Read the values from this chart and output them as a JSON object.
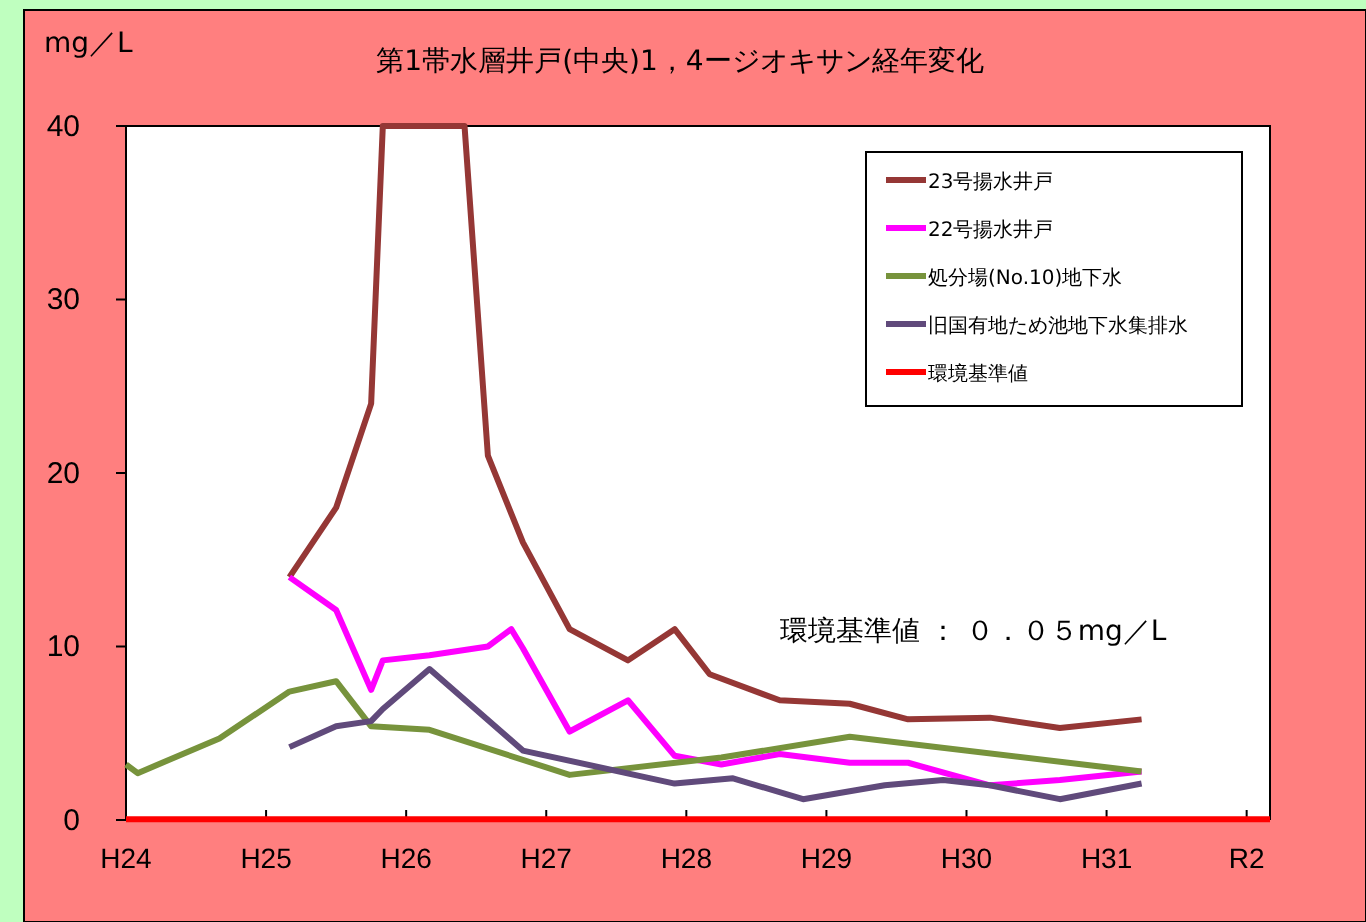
{
  "chart_data": {
    "type": "line",
    "title": "第1帯水層井戸(中央)1，4ージオキサン経年変化",
    "ylabel": "mg／L",
    "categories": [
      "H24",
      null,
      null,
      null,
      null,
      null,
      null,
      null,
      null,
      null,
      null,
      null,
      "H25",
      null,
      null,
      null,
      null,
      null,
      null,
      null,
      null,
      null,
      null,
      null,
      "H26",
      null,
      null,
      null,
      null,
      null,
      null,
      null,
      null,
      null,
      null,
      null,
      "H27",
      null,
      null,
      null,
      null,
      null,
      null,
      null,
      null,
      null,
      null,
      null,
      "H28",
      null,
      null,
      null,
      null,
      null,
      null,
      null,
      null,
      null,
      null,
      null,
      "H29",
      null,
      null,
      null,
      null,
      null,
      null,
      null,
      null,
      null,
      null,
      null,
      "H30",
      null,
      null,
      null,
      null,
      null,
      null,
      null,
      null,
      null,
      null,
      null,
      "H31",
      null,
      null,
      null,
      null,
      null,
      null,
      null,
      null,
      null,
      null,
      null,
      "R2",
      null,
      null
    ],
    "ylim": [
      0,
      40
    ],
    "yticks": [
      0,
      10,
      20,
      30,
      40
    ],
    "grid": false,
    "legend": "top right",
    "marker": "none",
    "line_style": "solid",
    "series": [
      {
        "name": "23号揚水井戸",
        "color": "#953735",
        "values": [
          null,
          null,
          null,
          null,
          null,
          null,
          null,
          null,
          null,
          null,
          null,
          null,
          null,
          null,
          14,
          null,
          null,
          null,
          18,
          null,
          null,
          24,
          40,
          null,
          null,
          null,
          null,
          null,
          null,
          40,
          null,
          21,
          null,
          null,
          16,
          null,
          null,
          null,
          11,
          null,
          null,
          null,
          null,
          9.2,
          null,
          null,
          null,
          11,
          null,
          null,
          8.4,
          null,
          null,
          null,
          null,
          null,
          6.9,
          null,
          null,
          null,
          null,
          null,
          6.7,
          null,
          null,
          null,
          null,
          5.8,
          null,
          null,
          null,
          null,
          null,
          null,
          5.9,
          null,
          null,
          null,
          null,
          null,
          5.3,
          null,
          null,
          null,
          null,
          null,
          null,
          5.8,
          null,
          null,
          null,
          null,
          null,
          null,
          null,
          null,
          null,
          null,
          null
        ]
      },
      {
        "name": "22号揚水井戸",
        "color": "#ff00ff",
        "values": [
          null,
          null,
          null,
          null,
          null,
          null,
          null,
          null,
          null,
          null,
          null,
          null,
          null,
          null,
          14,
          null,
          null,
          null,
          12.1,
          null,
          null,
          7.5,
          9.2,
          null,
          null,
          null,
          9.5,
          null,
          null,
          null,
          null,
          10,
          null,
          11,
          9.9,
          null,
          null,
          null,
          5.1,
          null,
          null,
          null,
          null,
          6.9,
          null,
          null,
          null,
          3.7,
          null,
          null,
          null,
          3.2,
          null,
          null,
          null,
          null,
          3.8,
          null,
          null,
          null,
          null,
          null,
          3.3,
          null,
          null,
          null,
          null,
          3.3,
          null,
          null,
          null,
          null,
          null,
          null,
          2,
          null,
          null,
          null,
          null,
          null,
          2.3,
          null,
          null,
          null,
          null,
          null,
          null,
          2.8,
          null,
          null,
          null,
          null,
          null,
          null,
          null,
          null,
          null,
          null,
          null
        ]
      },
      {
        "name": "処分場(No.10)地下水",
        "color": "#77933c",
        "values": [
          3.2,
          2.7,
          null,
          null,
          null,
          null,
          null,
          null,
          4.7,
          null,
          null,
          null,
          null,
          null,
          7.4,
          null,
          null,
          null,
          8,
          null,
          null,
          5.4,
          null,
          null,
          null,
          null,
          5.2,
          null,
          null,
          null,
          null,
          null,
          null,
          null,
          null,
          null,
          null,
          null,
          2.6,
          null,
          null,
          null,
          null,
          null,
          null,
          null,
          null,
          null,
          null,
          null,
          null,
          3.6,
          null,
          null,
          null,
          null,
          null,
          null,
          null,
          null,
          null,
          null,
          4.8,
          null,
          null,
          null,
          null,
          null,
          null,
          null,
          null,
          null,
          null,
          null,
          null,
          null,
          null,
          null,
          null,
          null,
          null,
          null,
          null,
          null,
          null,
          null,
          null,
          2.8,
          null,
          null,
          null,
          null,
          null,
          null,
          null,
          null,
          null,
          null,
          null
        ]
      },
      {
        "name": "旧国有地ため池地下水集排水",
        "color": "#604a7b",
        "values": [
          null,
          null,
          null,
          null,
          null,
          null,
          null,
          null,
          null,
          null,
          null,
          null,
          null,
          null,
          4.2,
          null,
          null,
          null,
          5.4,
          null,
          null,
          5.7,
          6.4,
          null,
          null,
          null,
          8.7,
          null,
          null,
          null,
          null,
          null,
          null,
          null,
          4,
          null,
          null,
          null,
          null,
          null,
          null,
          null,
          null,
          null,
          null,
          null,
          null,
          2.1,
          null,
          null,
          null,
          null,
          2.4,
          null,
          null,
          null,
          null,
          null,
          1.2,
          null,
          null,
          null,
          null,
          null,
          null,
          2,
          null,
          null,
          null,
          null,
          2.3,
          null,
          null,
          null,
          2,
          null,
          null,
          null,
          null,
          null,
          1.2,
          null,
          null,
          null,
          null,
          null,
          null,
          2.1,
          null,
          null,
          null,
          null,
          null,
          null,
          null,
          null,
          null,
          null,
          null
        ]
      },
      {
        "name": "環境基準値",
        "color": "#ff0000",
        "values": [
          0.05,
          0.05,
          0.05,
          0.05,
          0.05,
          0.05,
          0.05,
          0.05,
          0.05,
          0.05,
          0.05,
          0.05,
          0.05,
          0.05,
          0.05,
          0.05,
          0.05,
          0.05,
          0.05,
          0.05,
          0.05,
          0.05,
          0.05,
          0.05,
          0.05,
          0.05,
          0.05,
          0.05,
          0.05,
          0.05,
          0.05,
          0.05,
          0.05,
          0.05,
          0.05,
          0.05,
          0.05,
          0.05,
          0.05,
          0.05,
          0.05,
          0.05,
          0.05,
          0.05,
          0.05,
          0.05,
          0.05,
          0.05,
          0.05,
          0.05,
          0.05,
          0.05,
          0.05,
          0.05,
          0.05,
          0.05,
          0.05,
          0.05,
          0.05,
          0.05,
          0.05,
          0.05,
          0.05,
          0.05,
          0.05,
          0.05,
          0.05,
          0.05,
          0.05,
          0.05,
          0.05,
          0.05,
          0.05,
          0.05,
          0.05,
          0.05,
          0.05,
          0.05,
          0.05,
          0.05,
          0.05,
          0.05,
          0.05,
          0.05,
          0.05,
          0.05,
          0.05,
          0.05,
          0.05,
          0.05,
          0.05,
          0.05,
          0.05,
          0.05,
          0.05,
          0.05,
          0.05,
          0.05,
          0.05
        ]
      }
    ],
    "annotations": [
      "環境基準値 ： ０．０５mg／L"
    ]
  }
}
